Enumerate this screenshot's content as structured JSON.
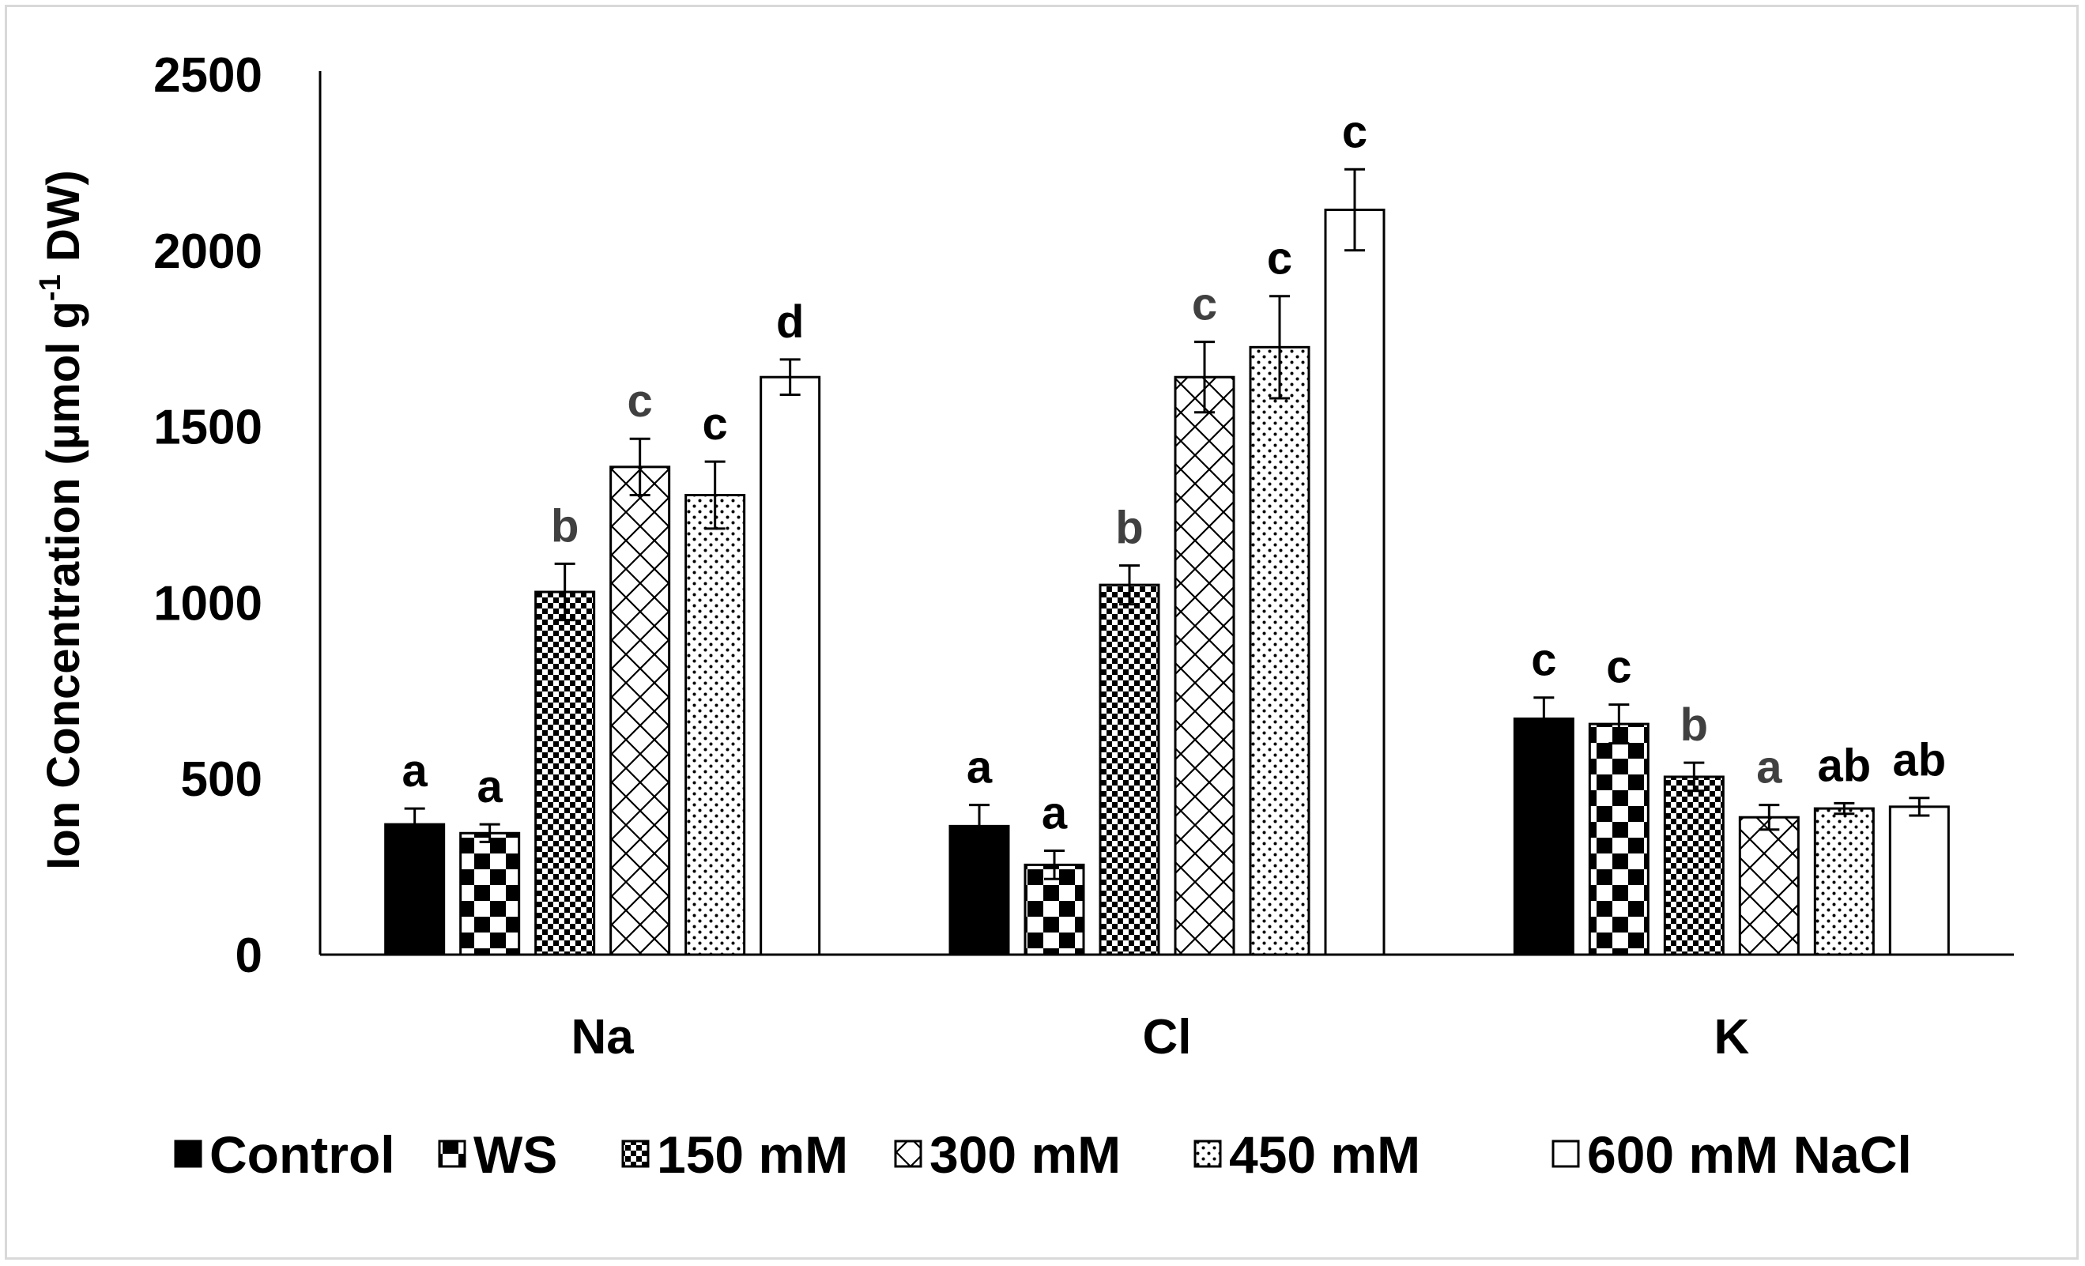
{
  "chart_data": {
    "type": "bar",
    "title": "",
    "xlabel": "",
    "ylabel": "Ion Concentration (µmol g-1 DW)",
    "ylabel_parts": {
      "main": "Ion Concentration (µmol g",
      "sup": "-1",
      "tail": " DW)"
    },
    "ylim": [
      0,
      2500
    ],
    "yticks": [
      0,
      500,
      1000,
      1500,
      2000,
      2500
    ],
    "grid": false,
    "legend_position": "bottom",
    "categories": [
      "Na",
      "Cl",
      "K"
    ],
    "series": [
      {
        "name": "Control",
        "pattern": "solid",
        "values": [
          370,
          365,
          670
        ],
        "errors": [
          45,
          60,
          60
        ],
        "letters": [
          "a",
          "a",
          "c"
        ]
      },
      {
        "name": "WS",
        "pattern": "checker-large",
        "values": [
          345,
          255,
          655
        ],
        "errors": [
          25,
          40,
          55
        ],
        "letters": [
          "a",
          "a",
          "c"
        ]
      },
      {
        "name": "150 mM",
        "pattern": "checker-small",
        "values": [
          1030,
          1050,
          505
        ],
        "errors": [
          80,
          55,
          40
        ],
        "letters": [
          "b",
          "b",
          "b"
        ]
      },
      {
        "name": "300 mM",
        "pattern": "diamond",
        "values": [
          1385,
          1640,
          390
        ],
        "errors": [
          80,
          100,
          35
        ],
        "letters": [
          "c",
          "c",
          "a"
        ]
      },
      {
        "name": "450 mM",
        "pattern": "dots",
        "values": [
          1305,
          1725,
          415
        ],
        "errors": [
          95,
          145,
          15
        ],
        "letters": [
          "c",
          "c",
          "ab"
        ]
      },
      {
        "name": "600 mM NaCl",
        "pattern": "white",
        "values": [
          1640,
          2115,
          420
        ],
        "errors": [
          50,
          115,
          25
        ],
        "letters": [
          "d",
          "c",
          "ab"
        ]
      }
    ]
  }
}
